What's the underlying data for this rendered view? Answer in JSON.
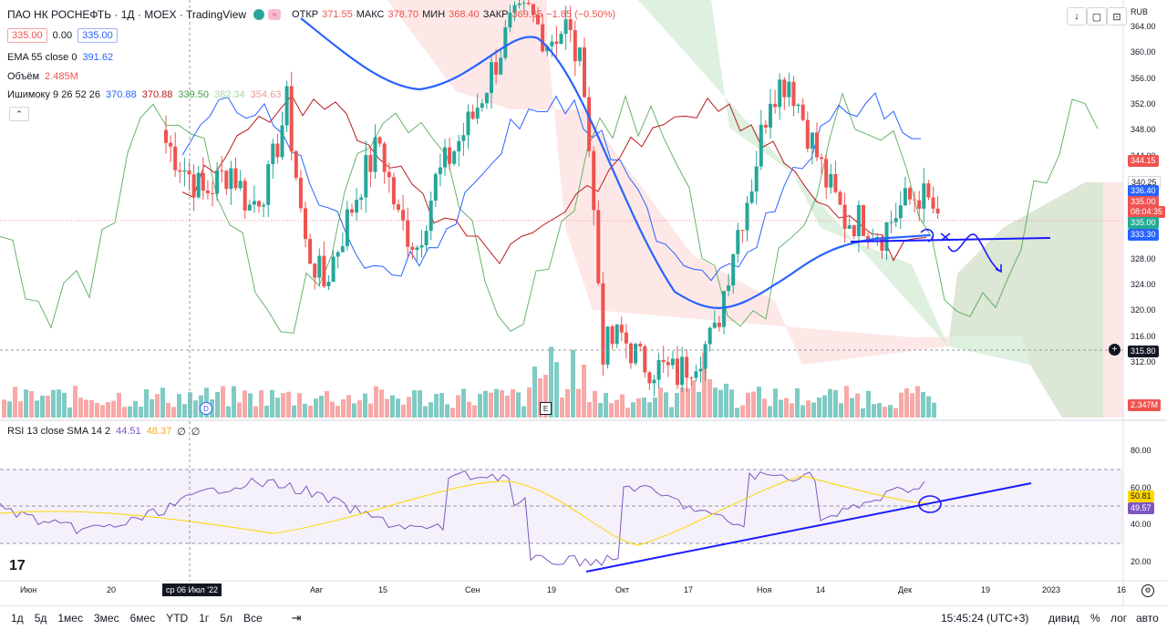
{
  "header": {
    "symbol": "ПАО НК РОСНЕФТЬ · 1Д · MOEX · TradingView",
    "open_label": "ОТКР",
    "open": "371.55",
    "high_label": "МАКС",
    "high": "378.70",
    "low_label": "МИН",
    "low": "368.40",
    "close_label": "ЗАКР",
    "close": "369.65",
    "change": "−1.85 (−0.50%)",
    "currency": "RUB"
  },
  "trade": {
    "sell": "335.00",
    "spread": "0.00",
    "buy": "335.00"
  },
  "legend": {
    "ema_label": "EMA 55 close 0",
    "ema_value": "391.62",
    "volume_label": "Объём",
    "volume_value": "2.485M",
    "ichimoku_label": "Ишимоку 9 26 52 26",
    "ichimoku_values": [
      "370.88",
      "370.88",
      "339.50",
      "382.34",
      "354.63"
    ]
  },
  "rsi_legend": {
    "label": "RSI 13 close SMA 14 2",
    "rsi": "44.51",
    "sma": "48.37",
    "extra1": "∅",
    "extra2": "∅"
  },
  "price_axis": [
    "364.00",
    "360.00",
    "356.00",
    "352.00",
    "348.00",
    "344.00",
    "340.00",
    "336.00",
    "332.00",
    "328.00",
    "324.00",
    "320.00",
    "316.00",
    "312.00"
  ],
  "price_tags": [
    {
      "text": "344.15",
      "color": "#ef5350"
    },
    {
      "text": "340.25",
      "color": "#ffffff",
      "fg": "#131722"
    },
    {
      "text": "336.40",
      "color": "#2962ff"
    },
    {
      "text": "335.00",
      "color": "#ef5350"
    },
    {
      "text": "08:04:35",
      "color": "#ef5350"
    },
    {
      "text": "335.00",
      "color": "#22ab94"
    },
    {
      "text": "333.30",
      "color": "#2962ff"
    },
    {
      "text": "315.80",
      "color": "#131722"
    },
    {
      "text": "2.347M",
      "color": "#ef5350"
    }
  ],
  "rsi_axis": [
    "80.00",
    "60.00",
    "40.00",
    "20.00"
  ],
  "rsi_tags": [
    {
      "text": "50.81",
      "color": "#ffd600",
      "fg": "#131722"
    },
    {
      "text": "49.57",
      "color": "#7e57c2"
    }
  ],
  "time_axis": [
    "Июн",
    "20",
    "Авг",
    "15",
    "Сен",
    "19",
    "Окт",
    "17",
    "Ноя",
    "14",
    "Дек",
    "19",
    "2023",
    "16"
  ],
  "cursor_date": "ср 06 Июл '22",
  "markers": {
    "dividend": "D",
    "earnings": "E"
  },
  "bottom": {
    "ranges": [
      "1д",
      "5д",
      "1мес",
      "3мес",
      "6мес",
      "YTD",
      "1г",
      "5л",
      "Все"
    ],
    "clock": "15:45:24 (UTC+3)",
    "div_label": "дивид",
    "pct_label": "%",
    "log_label": "лог",
    "auto_label": "авто"
  },
  "colors": {
    "up": "#26a69a",
    "down": "#ef5350",
    "ema": "#2962ff",
    "rsi": "#7e57c2",
    "rsi_sma": "#ffd600",
    "drawing": "#1a1aff"
  },
  "icons": [
    "down-arrow-icon",
    "maximize-icon",
    "camera-icon",
    "candle-type-icon",
    "calendar-range-icon",
    "settings-icon",
    "tradingview-logo-icon",
    "crosshair-icon"
  ]
}
